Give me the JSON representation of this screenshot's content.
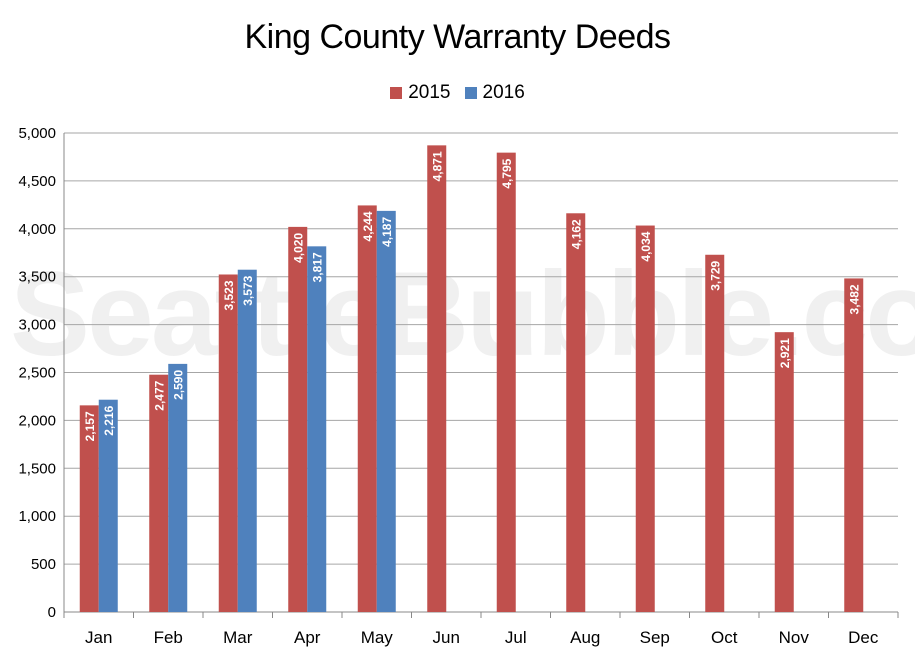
{
  "chart_data": {
    "type": "bar",
    "title": "King County Warranty Deeds",
    "categories": [
      "Jan",
      "Feb",
      "Mar",
      "Apr",
      "May",
      "Jun",
      "Jul",
      "Aug",
      "Sep",
      "Oct",
      "Nov",
      "Dec"
    ],
    "series": [
      {
        "name": "2015",
        "color": "#c0504d",
        "values": [
          2157,
          2477,
          3523,
          4020,
          4244,
          4871,
          4795,
          4162,
          4034,
          3729,
          2921,
          3482
        ],
        "labels": [
          "2,157",
          "2,477",
          "3,523",
          "4,020",
          "4,244",
          "4,871",
          "4,795",
          "4,162",
          "4,034",
          "3,729",
          "2,921",
          "3,482"
        ]
      },
      {
        "name": "2016",
        "color": "#4f81bd",
        "values": [
          2216,
          2590,
          3573,
          3817,
          4187,
          null,
          null,
          null,
          null,
          null,
          null,
          null
        ],
        "labels": [
          "2,216",
          "2,590",
          "3,573",
          "3,817",
          "4,187",
          null,
          null,
          null,
          null,
          null,
          null,
          null
        ]
      }
    ],
    "ylim": [
      0,
      5000
    ],
    "yticks": [
      0,
      500,
      1000,
      1500,
      2000,
      2500,
      3000,
      3500,
      4000,
      4500,
      5000
    ],
    "ytick_labels": [
      "0",
      "500",
      "1,000",
      "1,500",
      "2,000",
      "2,500",
      "3,000",
      "3,500",
      "4,000",
      "4,500",
      "5,000"
    ],
    "grid": true,
    "legend_position": "top-center"
  },
  "watermark": "SeattleBubble.com"
}
